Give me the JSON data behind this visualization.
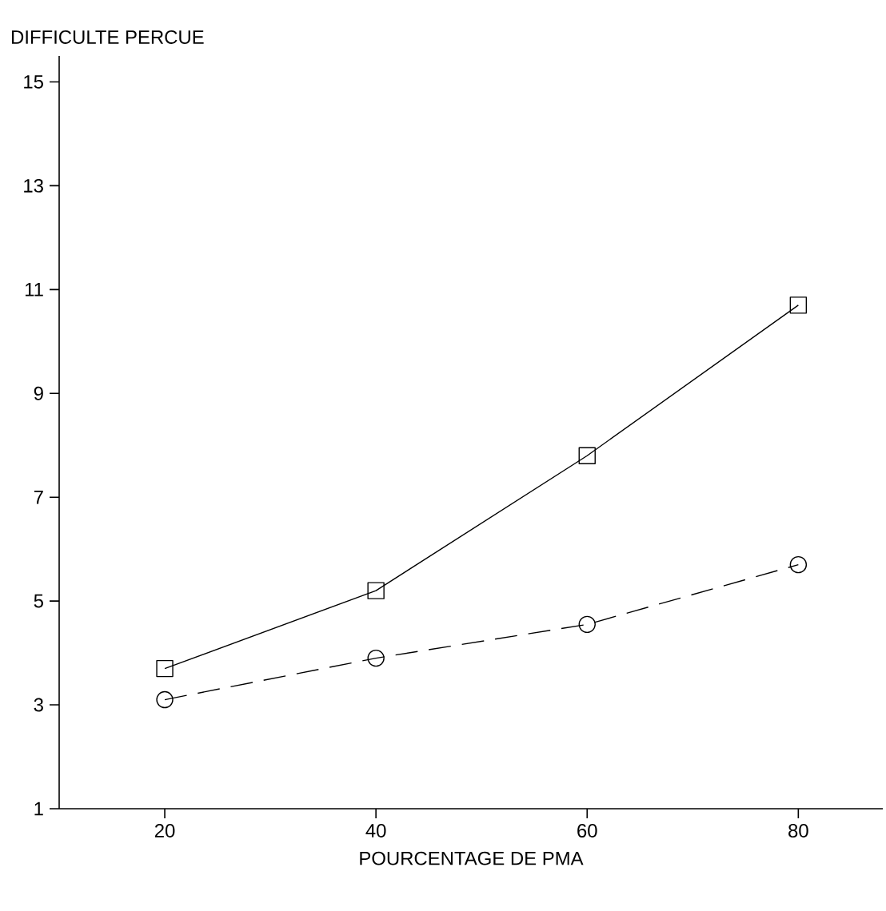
{
  "chart_data": {
    "type": "line",
    "ylabel": "DIFFICULTE PERCUE",
    "xlabel": "POURCENTAGE DE PMA",
    "x": [
      20,
      40,
      60,
      80
    ],
    "series": [
      {
        "color": "#000000",
        "marker": "square",
        "line_style": "solid",
        "values": [
          3.7,
          5.2,
          7.8,
          10.7
        ]
      },
      {
        "color": "#000000",
        "marker": "circle",
        "line_style": "dashed",
        "values": [
          3.1,
          3.9,
          4.55,
          5.7
        ]
      }
    ],
    "xlim": [
      10,
      88
    ],
    "ylim": [
      1,
      15.5
    ],
    "xticks": [
      20,
      40,
      60,
      80
    ],
    "yticks": [
      1,
      3,
      5,
      7,
      9,
      11,
      13,
      15
    ],
    "grid": false
  }
}
